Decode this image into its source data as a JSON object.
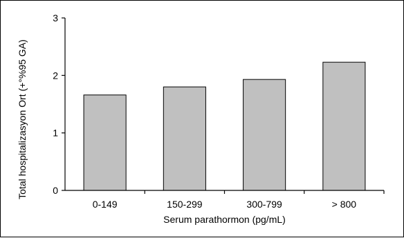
{
  "chart_data": {
    "type": "bar",
    "title": "",
    "xlabel": "Serum parathormon (pg/mL)",
    "ylabel": "Total hospitalizasyon Ort (+°%95 GA)",
    "categories": [
      "0-149",
      "150-299",
      "300-799",
      "> 800"
    ],
    "values": [
      1.66,
      1.8,
      1.93,
      2.23
    ],
    "ylim": [
      0,
      3
    ],
    "yticks": [
      "0",
      "1",
      "2",
      "3"
    ],
    "grid": false,
    "legend": "none",
    "bar_color": "#c0c0c0",
    "bar_edge_color": "#000000"
  }
}
